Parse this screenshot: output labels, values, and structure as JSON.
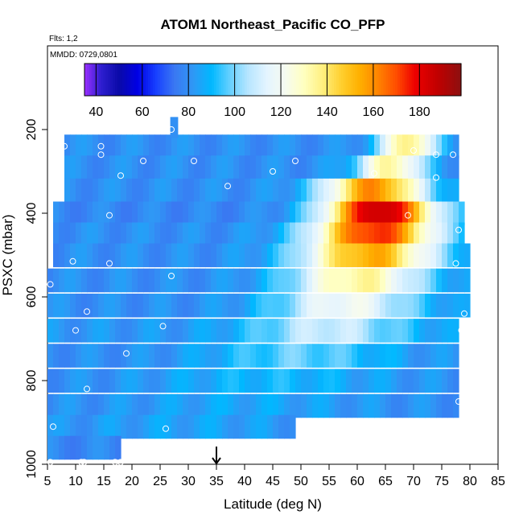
{
  "chart_data": {
    "type": "heatmap",
    "title": "ATOM1 Northeast_Pacific CO_PFP",
    "flights_note": "Flts: 1,2",
    "date_note": "MMDD: 0729,0801",
    "xlabel": "Latitude (deg N)",
    "ylabel": "PSXC (mbar)",
    "xlim": [
      5,
      85
    ],
    "ylim": [
      1000,
      0
    ],
    "x_ticks": [
      "5",
      "10",
      "15",
      "20",
      "25",
      "30",
      "35",
      "40",
      "45",
      "50",
      "55",
      "60",
      "65",
      "70",
      "75",
      "80",
      "85"
    ],
    "y_ticks": [
      "200",
      "400",
      "600",
      "800",
      "1000"
    ],
    "colorbar": {
      "range": [
        35,
        198
      ],
      "ticks": [
        "40",
        "60",
        "80",
        "100",
        "120",
        "140",
        "160",
        "180"
      ],
      "stops": [
        [
          35,
          "#9b30ff"
        ],
        [
          42,
          "#2f1fd0"
        ],
        [
          50,
          "#0a0aa8"
        ],
        [
          58,
          "#0000e6"
        ],
        [
          66,
          "#1840ff"
        ],
        [
          74,
          "#3a78f2"
        ],
        [
          82,
          "#2f98f5"
        ],
        [
          90,
          "#00b8ff"
        ],
        [
          98,
          "#66d0ff"
        ],
        [
          106,
          "#b8e6ff"
        ],
        [
          114,
          "#e4f4ff"
        ],
        [
          122,
          "#f6fbf0"
        ],
        [
          130,
          "#ffffc0"
        ],
        [
          138,
          "#fff080"
        ],
        [
          146,
          "#ffd030"
        ],
        [
          154,
          "#ffb000"
        ],
        [
          162,
          "#ff8400"
        ],
        [
          170,
          "#ff4d00"
        ],
        [
          178,
          "#ee0000"
        ],
        [
          188,
          "#c00000"
        ],
        [
          198,
          "#8c1010"
        ]
      ]
    },
    "grid": false,
    "marker_arrow_x": 35,
    "rows": [
      {
        "p": 240,
        "x0": 8,
        "x1": 78,
        "base": 80,
        "peak": {
          "center": 69,
          "height": 60,
          "width": 5
        }
      },
      {
        "p": 290,
        "x0": 8,
        "x1": 78,
        "base": 80,
        "peak": {
          "center": 66,
          "height": 55,
          "width": 6
        }
      },
      {
        "p": 345,
        "x0": 8,
        "x1": 78,
        "base": 80,
        "peak": {
          "center": 63,
          "height": 80,
          "width": 9
        }
      },
      {
        "p": 400,
        "x0": 6,
        "x1": 79,
        "base": 78,
        "peak": {
          "center": 64,
          "height": 110,
          "width": 10
        }
      },
      {
        "p": 450,
        "x0": 6,
        "x1": 79,
        "base": 80,
        "peak": {
          "center": 63,
          "height": 95,
          "width": 11
        }
      },
      {
        "p": 500,
        "x0": 6,
        "x1": 80,
        "base": 80,
        "peak": {
          "center": 62,
          "height": 75,
          "width": 12
        }
      },
      {
        "p": 560,
        "x0": 5,
        "x1": 80,
        "base": 80,
        "peak": {
          "center": 60,
          "height": 55,
          "width": 12
        }
      },
      {
        "p": 620,
        "x0": 5,
        "x1": 80,
        "base": 80,
        "peak": {
          "center": 58,
          "height": 40,
          "width": 13
        }
      },
      {
        "p": 680,
        "x0": 5,
        "x1": 78,
        "base": 82,
        "peak": {
          "center": 55,
          "height": 28,
          "width": 14
        }
      },
      {
        "p": 740,
        "x0": 5,
        "x1": 78,
        "base": 80,
        "peak": {
          "center": 50,
          "height": 18,
          "width": 16
        }
      },
      {
        "p": 800,
        "x0": 5,
        "x1": 78,
        "base": 80,
        "peak": {
          "center": 45,
          "height": 10,
          "width": 20
        }
      },
      {
        "p": 860,
        "x0": 5,
        "x1": 78,
        "base": 80,
        "peak": {
          "center": 40,
          "height": 6,
          "width": 20
        }
      },
      {
        "p": 910,
        "x0": 5,
        "x1": 49,
        "base": 80,
        "peak": {
          "center": 30,
          "height": 5,
          "width": 20
        }
      },
      {
        "p": 960,
        "x0": 5,
        "x1": 18,
        "base": 78,
        "peak": {
          "center": 10,
          "height": 0,
          "width": 10
        }
      }
    ],
    "sample_points": [
      [
        27,
        200
      ],
      [
        8,
        240
      ],
      [
        14.5,
        240
      ],
      [
        14.5,
        260
      ],
      [
        22,
        275
      ],
      [
        31,
        275
      ],
      [
        45,
        300
      ],
      [
        49,
        275
      ],
      [
        63,
        305
      ],
      [
        70,
        250
      ],
      [
        74,
        260
      ],
      [
        77,
        260
      ],
      [
        18,
        310
      ],
      [
        37,
        335
      ],
      [
        74,
        315
      ],
      [
        16,
        405
      ],
      [
        69,
        405
      ],
      [
        78,
        440
      ],
      [
        9.5,
        515
      ],
      [
        16,
        520
      ],
      [
        27,
        550
      ],
      [
        77.5,
        520
      ],
      [
        5.5,
        570
      ],
      [
        12,
        635
      ],
      [
        10,
        680
      ],
      [
        25.5,
        670
      ],
      [
        79,
        640
      ],
      [
        78.5,
        680
      ],
      [
        19,
        735
      ],
      [
        12,
        820
      ],
      [
        78,
        850
      ],
      [
        78.5,
        900
      ],
      [
        6,
        910
      ],
      [
        26,
        915
      ],
      [
        5.5,
        995
      ],
      [
        11,
        995
      ],
      [
        11.5,
        995
      ],
      [
        17,
        995
      ],
      [
        18,
        995
      ]
    ]
  }
}
